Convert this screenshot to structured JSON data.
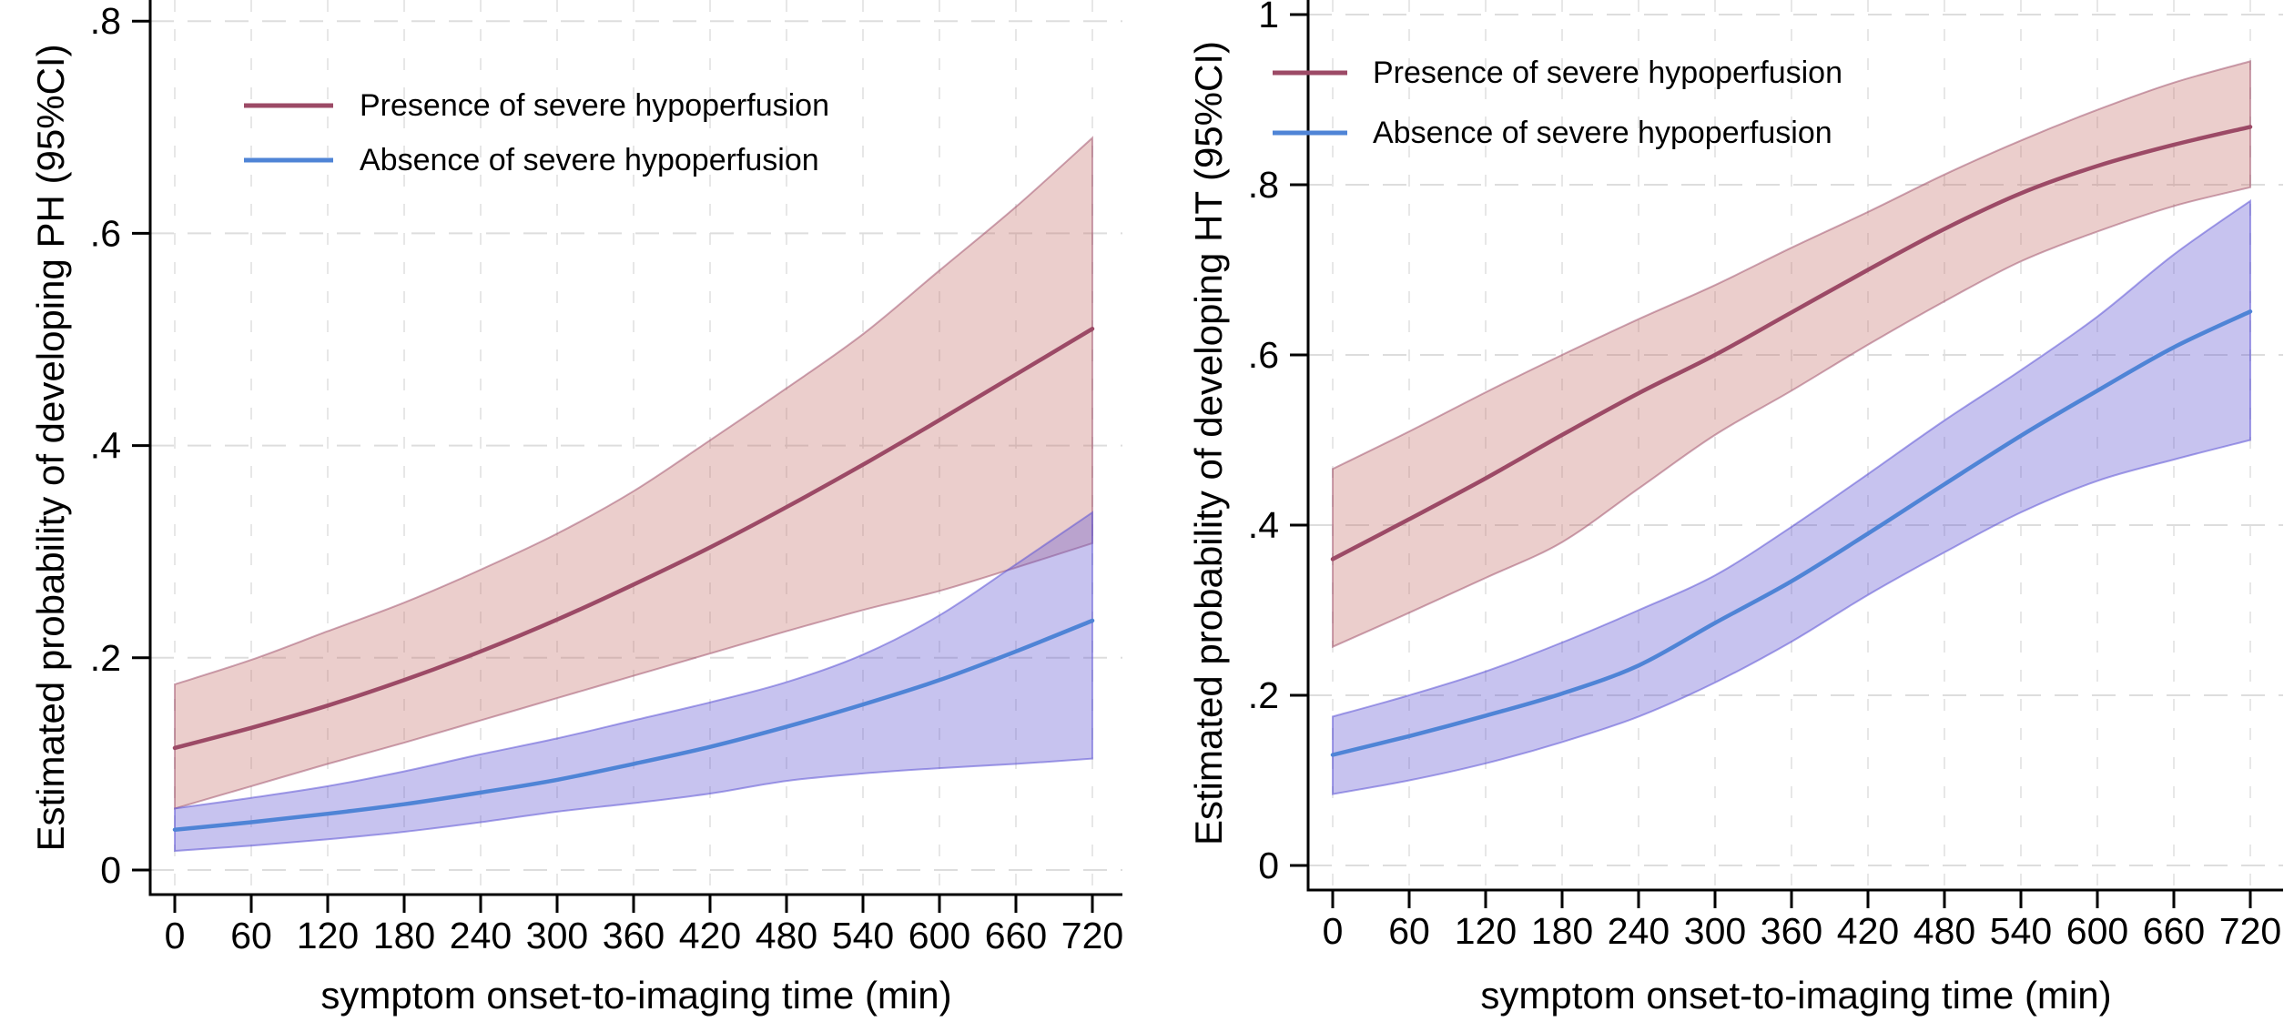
{
  "chart_data": [
    {
      "type": "line",
      "title": "",
      "xlabel": "symptom onset-to-imaging time (min)",
      "ylabel": "Estimated probability of developing PH (95%CI)",
      "x": [
        0,
        60,
        120,
        180,
        240,
        300,
        360,
        420,
        480,
        540,
        600,
        660,
        720
      ],
      "x_tick_labels": [
        "0",
        "60",
        "120",
        "180",
        "240",
        "300",
        "360",
        "420",
        "480",
        "540",
        "600",
        "660",
        "720"
      ],
      "y_tick_values": [
        0,
        0.2,
        0.4,
        0.6,
        0.8
      ],
      "y_tick_labels": [
        "0",
        ".2",
        ".4",
        ".6",
        ".8"
      ],
      "xlim": [
        0,
        720
      ],
      "ylim": [
        0,
        0.84
      ],
      "grid": true,
      "legend_position": "top-left-inside",
      "series": [
        {
          "name": "Presence of severe hypoperfusion",
          "color": "#9c4a66",
          "band_fill": "rgba(199,118,114,0.36)",
          "band_edge": "rgba(156,74,102,0.5)",
          "values": [
            0.115,
            0.134,
            0.155,
            0.179,
            0.206,
            0.236,
            0.269,
            0.304,
            0.342,
            0.382,
            0.424,
            0.467,
            0.51
          ],
          "ci_upper": [
            0.175,
            0.198,
            0.225,
            0.252,
            0.283,
            0.317,
            0.357,
            0.405,
            0.454,
            0.505,
            0.565,
            0.625,
            0.69
          ],
          "ci_lower": [
            0.058,
            0.079,
            0.1,
            0.12,
            0.141,
            0.162,
            0.183,
            0.204,
            0.225,
            0.245,
            0.263,
            0.285,
            0.308
          ]
        },
        {
          "name": "Absence of severe hypoperfusion",
          "color": "#4f84d6",
          "band_fill": "rgba(99,90,212,0.36)",
          "band_edge": "rgba(92,84,214,0.55)",
          "values": [
            0.038,
            0.045,
            0.053,
            0.062,
            0.073,
            0.085,
            0.1,
            0.116,
            0.135,
            0.156,
            0.179,
            0.206,
            0.235
          ],
          "ci_upper": [
            0.058,
            0.068,
            0.079,
            0.093,
            0.109,
            0.124,
            0.141,
            0.158,
            0.177,
            0.203,
            0.24,
            0.288,
            0.337
          ],
          "ci_lower": [
            0.018,
            0.023,
            0.029,
            0.036,
            0.045,
            0.055,
            0.063,
            0.072,
            0.084,
            0.091,
            0.096,
            0.1,
            0.105
          ]
        }
      ]
    },
    {
      "type": "line",
      "title": "",
      "xlabel": "symptom onset-to-imaging time (min)",
      "ylabel": "Estimated probability of developing HT (95%CI)",
      "x": [
        0,
        60,
        120,
        180,
        240,
        300,
        360,
        420,
        480,
        540,
        600,
        660,
        720
      ],
      "x_tick_labels": [
        "0",
        "60",
        "120",
        "180",
        "240",
        "300",
        "360",
        "420",
        "480",
        "540",
        "600",
        "660",
        "720"
      ],
      "y_tick_values": [
        0,
        0.2,
        0.4,
        0.6,
        0.8,
        1.0
      ],
      "y_tick_labels": [
        "0",
        ".2",
        ".4",
        ".6",
        ".8",
        "1"
      ],
      "xlim": [
        0,
        720
      ],
      "ylim": [
        0,
        1.0
      ],
      "grid": true,
      "legend_position": "top-left-inside",
      "series": [
        {
          "name": "Presence of severe hypoperfusion",
          "color": "#9c4a66",
          "band_fill": "rgba(199,118,114,0.36)",
          "band_edge": "rgba(156,74,102,0.5)",
          "values": [
            0.36,
            0.407,
            0.455,
            0.506,
            0.555,
            0.6,
            0.65,
            0.7,
            0.748,
            0.79,
            0.822,
            0.847,
            0.868
          ],
          "ci_upper": [
            0.466,
            0.51,
            0.556,
            0.6,
            0.642,
            0.682,
            0.726,
            0.768,
            0.812,
            0.852,
            0.888,
            0.92,
            0.945
          ],
          "ci_lower": [
            0.257,
            0.297,
            0.338,
            0.38,
            0.443,
            0.506,
            0.558,
            0.612,
            0.663,
            0.71,
            0.745,
            0.775,
            0.797
          ]
        },
        {
          "name": "Absence of severe hypoperfusion",
          "color": "#4f84d6",
          "band_fill": "rgba(99,90,212,0.36)",
          "band_edge": "rgba(92,84,214,0.55)",
          "values": [
            0.13,
            0.152,
            0.176,
            0.202,
            0.235,
            0.285,
            0.334,
            0.39,
            0.448,
            0.505,
            0.558,
            0.609,
            0.651
          ],
          "ci_upper": [
            0.175,
            0.2,
            0.228,
            0.262,
            0.3,
            0.341,
            0.398,
            0.46,
            0.523,
            0.582,
            0.645,
            0.718,
            0.781
          ],
          "ci_lower": [
            0.084,
            0.1,
            0.12,
            0.145,
            0.175,
            0.215,
            0.263,
            0.318,
            0.368,
            0.415,
            0.452,
            0.477,
            0.5
          ]
        }
      ]
    }
  ]
}
